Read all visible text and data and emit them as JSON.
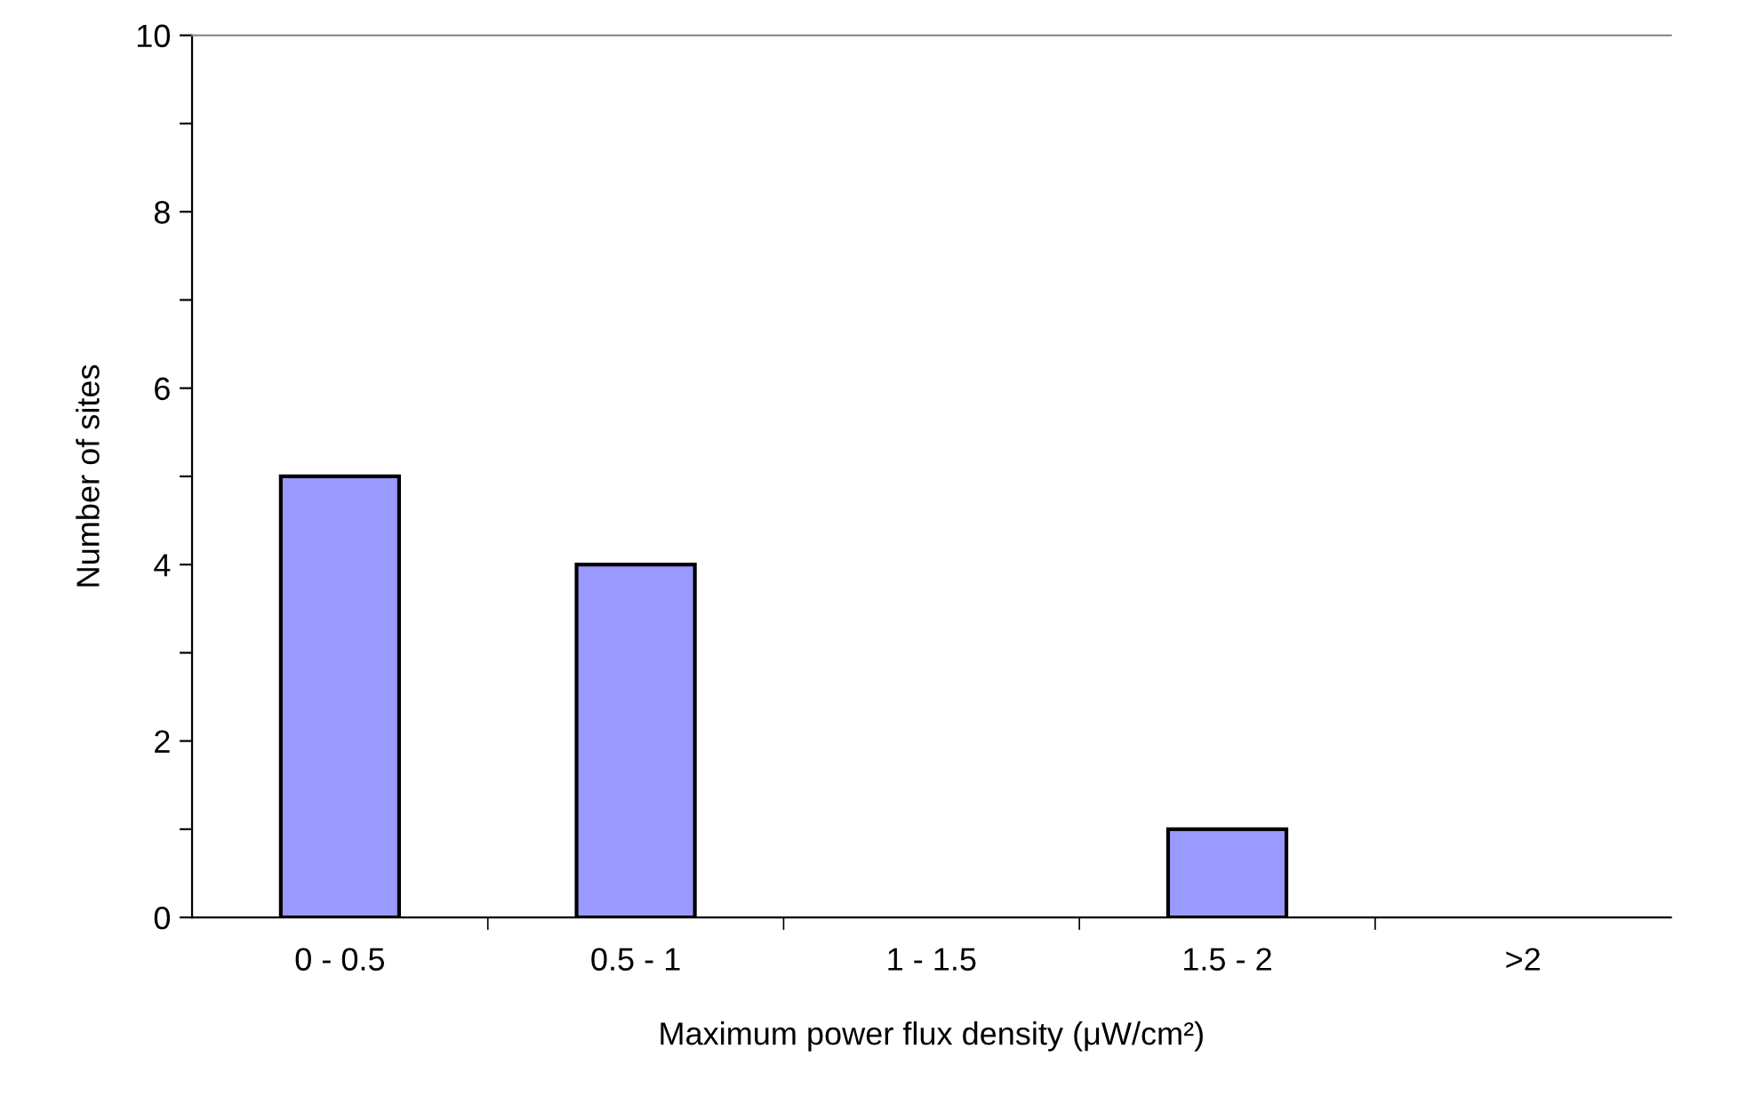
{
  "chart_data": {
    "type": "bar",
    "xlabel": "Maximum power flux density (μW/cm²)",
    "ylabel": "Number of sites",
    "categories": [
      "0 - 0.5",
      "0.5 - 1",
      "1 - 1.5",
      "1.5 - 2",
      ">2"
    ],
    "values": [
      5,
      4,
      0,
      1,
      0
    ],
    "color": "#9999ff",
    "ylim": [
      0,
      10
    ],
    "yticks": [
      0,
      {
        "value": 1,
        "label": null
      },
      2,
      {
        "value": 3,
        "label": null
      },
      4,
      {
        "value": 5,
        "label": null
      },
      6,
      {
        "value": 7,
        "label": null
      },
      8,
      {
        "value": 9,
        "label": null
      },
      10
    ],
    "grid": false,
    "legend": false
  }
}
